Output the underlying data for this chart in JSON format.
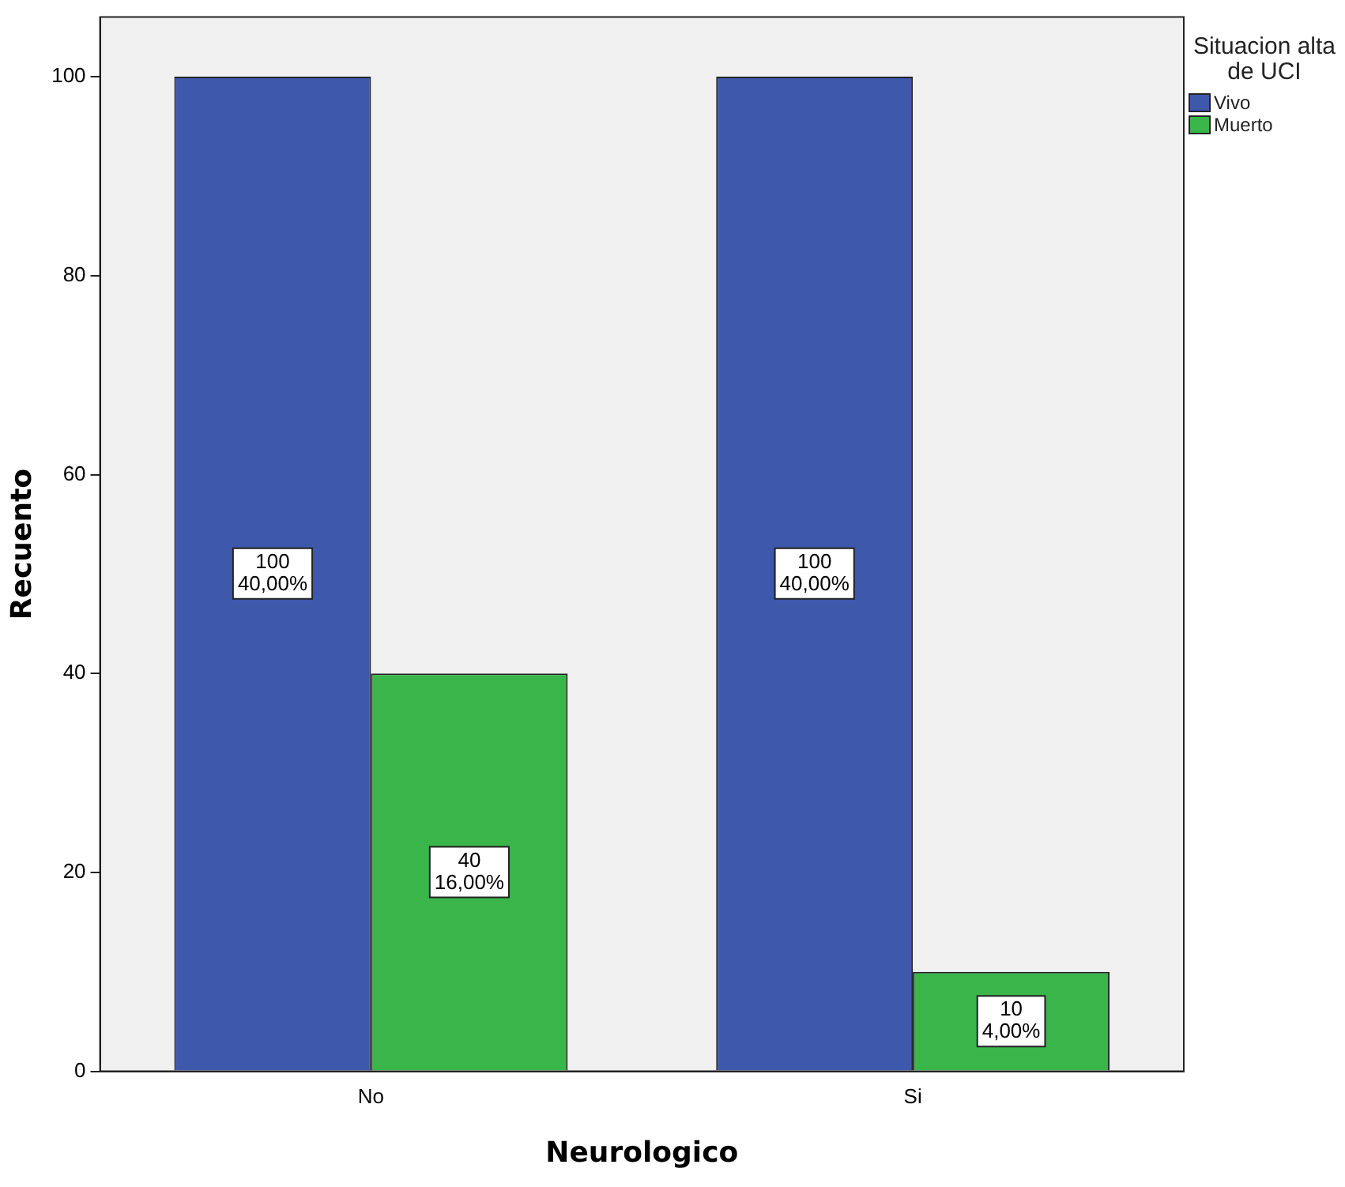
{
  "chart_data": {
    "type": "bar",
    "xlabel": "Neurologico",
    "ylabel": "Recuento",
    "legend_title": "Situacion alta de UCI",
    "legend": "top right",
    "grid": false,
    "categories": [
      "No",
      "Si"
    ],
    "series": [
      {
        "name": "Vivo",
        "color": "#3e58ac",
        "values": [
          100,
          100
        ],
        "value_labels": [
          "100\n40,00%",
          "100\n40,00%"
        ]
      },
      {
        "name": "Muerto",
        "color": "#3ab54a",
        "values": [
          40,
          10
        ],
        "value_labels": [
          "40\n16,00%",
          "10\n4,00%"
        ]
      }
    ],
    "ylim": [
      0,
      106
    ],
    "yticks": [
      0,
      20,
      40,
      60,
      80,
      100
    ]
  }
}
